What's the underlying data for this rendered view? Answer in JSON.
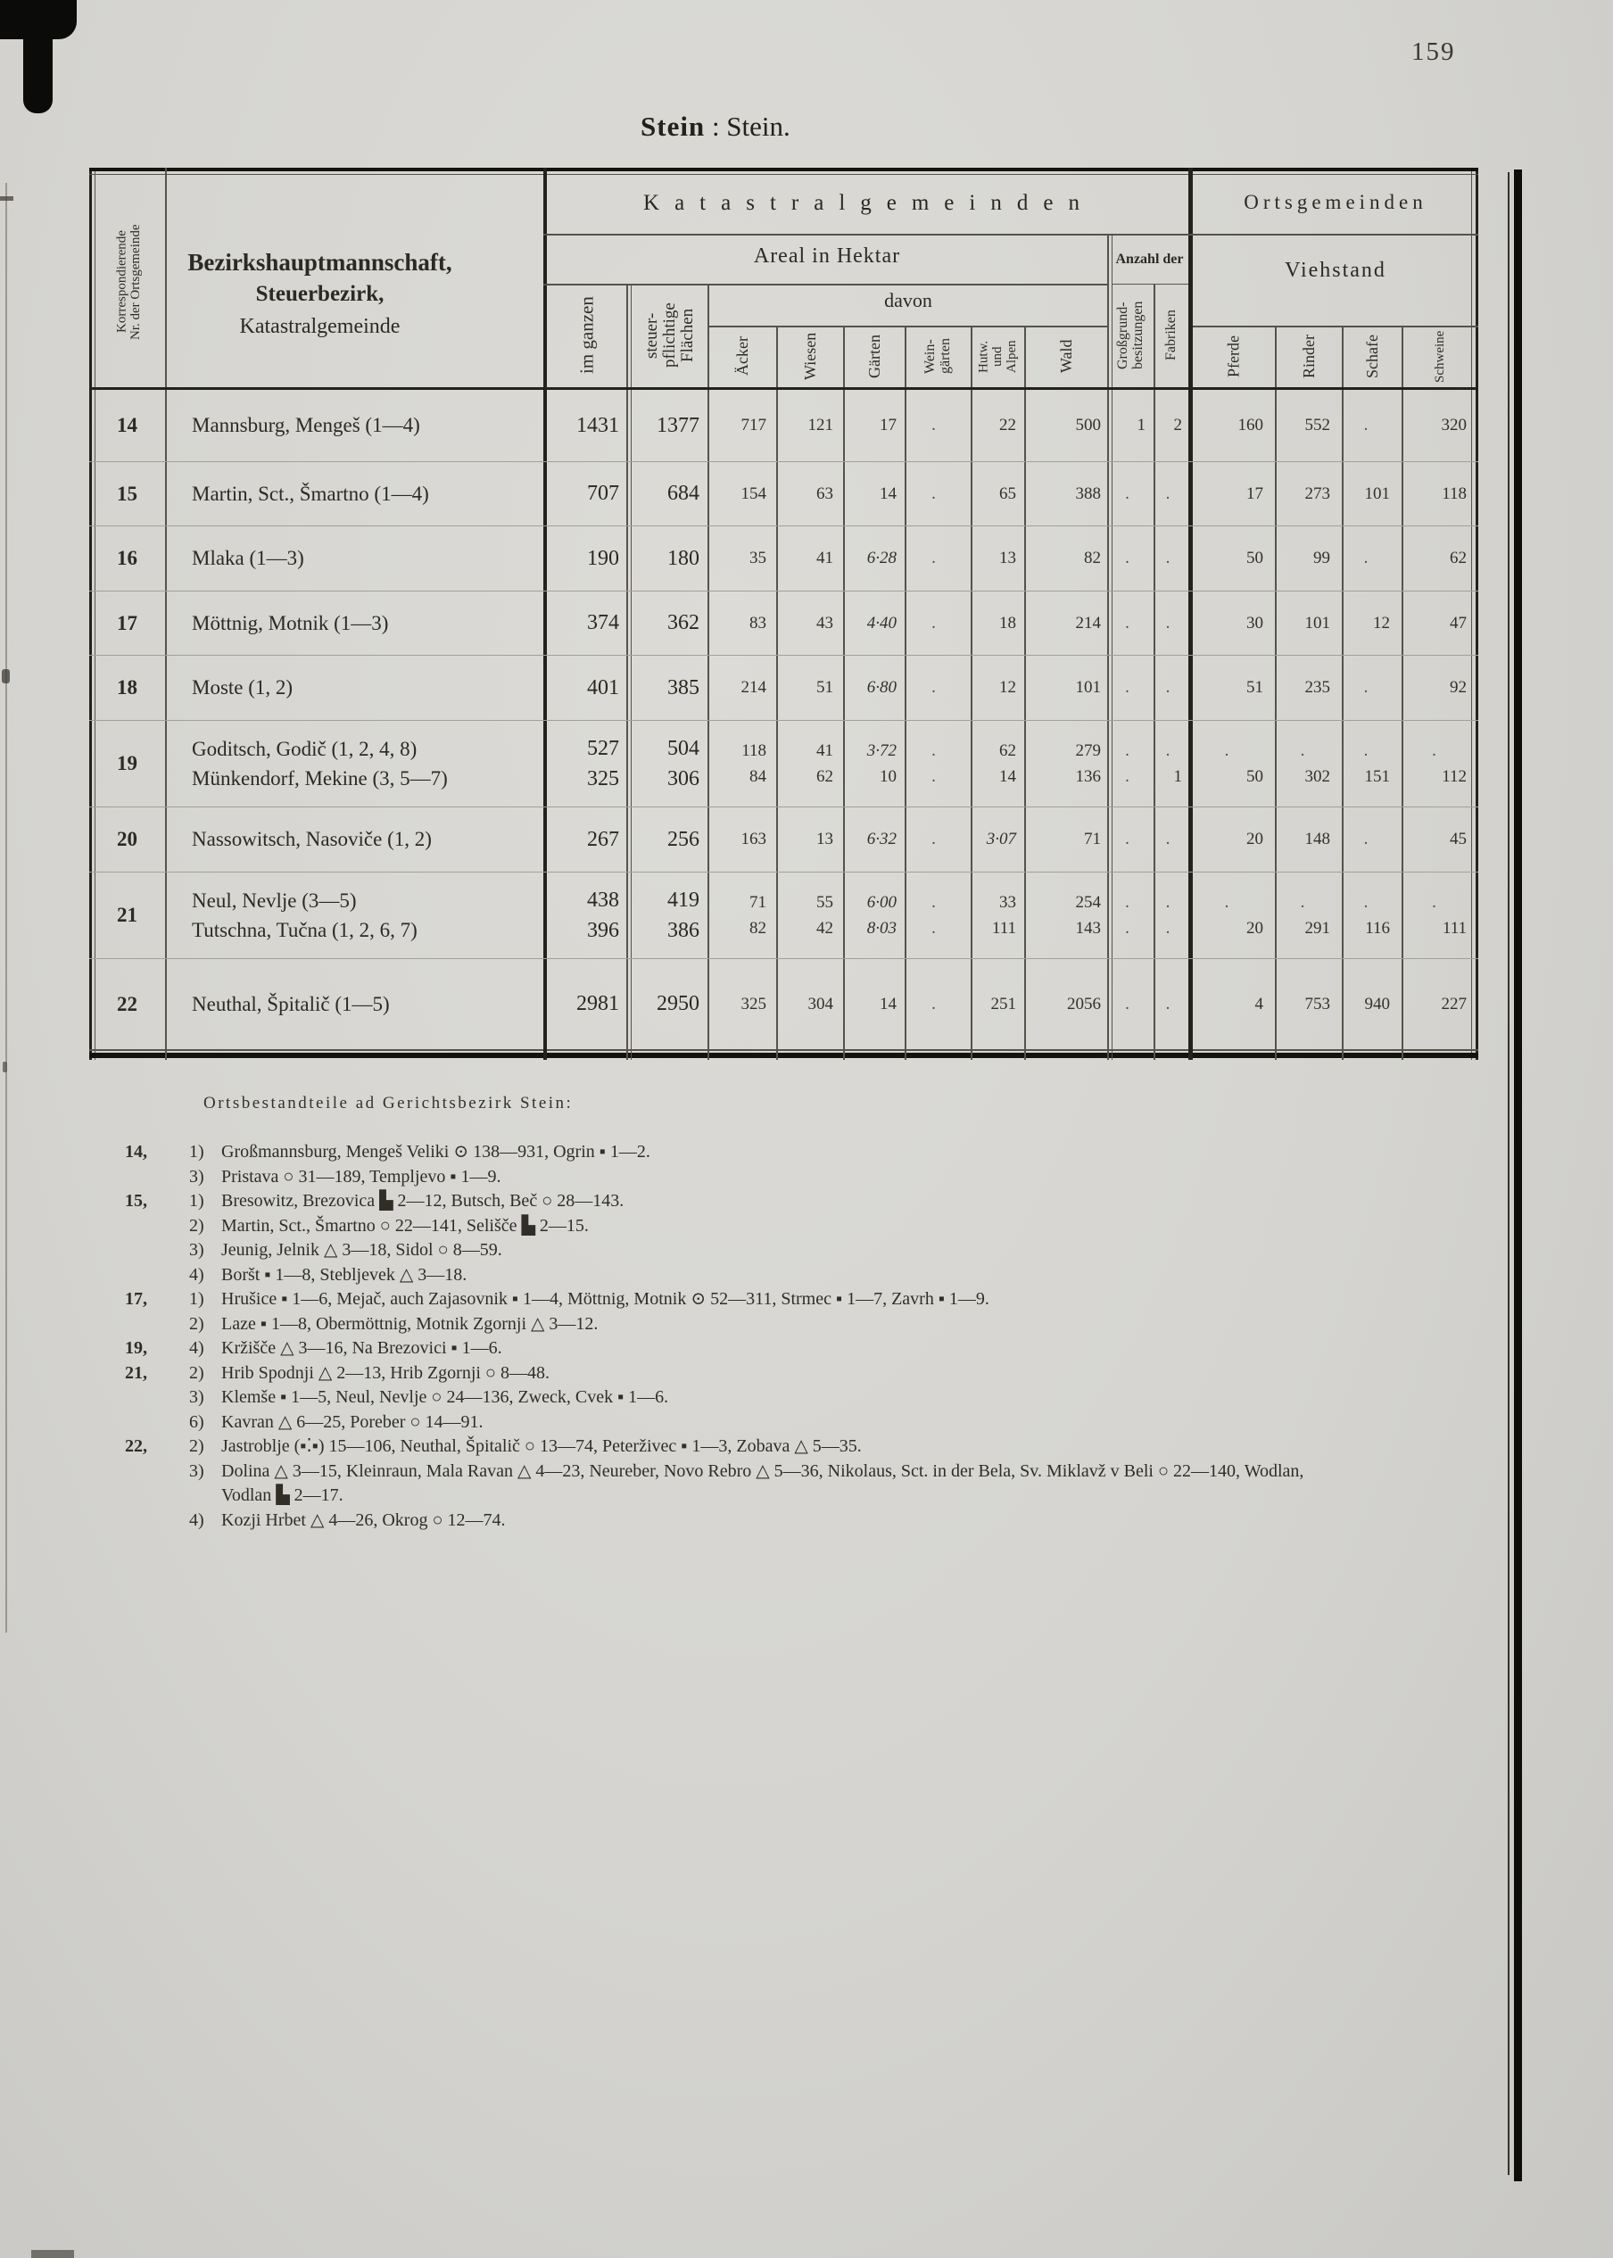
{
  "page": {
    "number": "159",
    "title": {
      "bold": "Stein",
      "rest": " : Stein."
    }
  },
  "table": {
    "corr_label": "Korrespondierende\nNr. der Ortsgemeinde",
    "left_header": [
      "Bezirkshauptmannschaft,",
      "Steuerbezirk,",
      "Katastralgemeinde"
    ],
    "sections": {
      "katastral": "Katastralgemeinden",
      "orts": "Ortsgemeinden"
    },
    "areal": "Areal in Hektar",
    "davon": "davon",
    "anzahl_der": "Anzahl der",
    "viehstand": "Viehstand",
    "columns": {
      "im_ganzen": "im ganzen",
      "steuerpflichtig": "steuer-\npflichtige\nFlächen",
      "aecker": "Äcker",
      "wiesen": "Wiesen",
      "gaerten": "Gärten",
      "weingaerten": "Wein-\ngärten",
      "hutweiden": "Hutw.\nund\nAlpen",
      "wald": "Wald",
      "grossgrund": "Großgrund-\nbesitzungen",
      "fabriken": "Fabriken",
      "pferde": "Pferde",
      "rinder": "Rinder",
      "schafe": "Schafe",
      "schweine": "Schweine"
    },
    "rows": [
      {
        "nr": "14",
        "lines": [
          {
            "name": "Mannsburg, Mengeš (1—4)",
            "values": [
              "1431",
              "1377",
              "717",
              "121",
              "17",
              ".",
              "22",
              "500",
              "1",
              "2",
              "160",
              "552",
              ".",
              "320"
            ]
          }
        ]
      },
      {
        "nr": "15",
        "lines": [
          {
            "name": "Martin, Sct., Šmartno (1—4)",
            "values": [
              "707",
              "684",
              "154",
              "63",
              "14",
              ".",
              "65",
              "388",
              ".",
              ".",
              "17",
              "273",
              "101",
              "118"
            ]
          }
        ]
      },
      {
        "nr": "16",
        "lines": [
          {
            "name": "Mlaka (1—3)",
            "values": [
              "190",
              "180",
              "35",
              "41",
              "6·28",
              ".",
              "13",
              "82",
              ".",
              ".",
              "50",
              "99",
              ".",
              "62"
            ]
          }
        ]
      },
      {
        "nr": "17",
        "lines": [
          {
            "name": "Möttnig, Motnik (1—3)",
            "values": [
              "374",
              "362",
              "83",
              "43",
              "4·40",
              ".",
              "18",
              "214",
              ".",
              ".",
              "30",
              "101",
              "12",
              "47"
            ]
          }
        ]
      },
      {
        "nr": "18",
        "lines": [
          {
            "name": "Moste (1, 2)",
            "values": [
              "401",
              "385",
              "214",
              "51",
              "6·80",
              ".",
              "12",
              "101",
              ".",
              ".",
              "51",
              "235",
              ".",
              "92"
            ]
          }
        ]
      },
      {
        "nr": "19",
        "lines": [
          {
            "name": "Goditsch, Godič (1, 2, 4, 8)",
            "values": [
              "527",
              "504",
              "118",
              "41",
              "3·72",
              ".",
              "62",
              "279",
              ".",
              ".",
              ".",
              ".",
              ".",
              "."
            ]
          },
          {
            "name": "Münkendorf, Mekine (3, 5—7)",
            "values": [
              "325",
              "306",
              "84",
              "62",
              "10",
              ".",
              "14",
              "136",
              ".",
              "1",
              "50",
              "302",
              "151",
              "112"
            ]
          }
        ]
      },
      {
        "nr": "20",
        "lines": [
          {
            "name": "Nassowitsch, Nasoviče (1, 2)",
            "values": [
              "267",
              "256",
              "163",
              "13",
              "6·32",
              ".",
              "3·07",
              "71",
              ".",
              ".",
              "20",
              "148",
              ".",
              "45"
            ]
          }
        ]
      },
      {
        "nr": "21",
        "lines": [
          {
            "name": "Neul, Nevlje (3—5)",
            "values": [
              "438",
              "419",
              "71",
              "55",
              "6·00",
              ".",
              "33",
              "254",
              ".",
              ".",
              ".",
              ".",
              ".",
              "."
            ]
          },
          {
            "name": "Tutschna, Tučna (1, 2, 6, 7)",
            "values": [
              "396",
              "386",
              "82",
              "42",
              "8·03",
              ".",
              "111",
              "143",
              ".",
              ".",
              "20",
              "291",
              "116",
              "111"
            ]
          }
        ]
      },
      {
        "nr": "22",
        "lines": [
          {
            "name": "Neuthal, Špitalič (1—5)",
            "values": [
              "2981",
              "2950",
              "325",
              "304",
              "14",
              ".",
              "251",
              "2056",
              ".",
              ".",
              "4",
              "753",
              "940",
              "227"
            ]
          }
        ]
      }
    ]
  },
  "footnotes": {
    "heading": "Ortsbestandteile ad Gerichtsbezirk Stein:",
    "items": [
      {
        "nr": "14,",
        "sub": "1)",
        "text": "Großmannsburg, Mengeš Veliki ⊙ 138—931, Ogrin ▪ 1—2."
      },
      {
        "nr": "",
        "sub": "3)",
        "text": "Pristava ○ 31—189, Templjevo ▪ 1—9."
      },
      {
        "nr": "15,",
        "sub": "1)",
        "text": "Bresowitz, Brezovica ▙ 2—12, Butsch, Beč ○ 28—143."
      },
      {
        "nr": "",
        "sub": "2)",
        "text": "Martin, Sct., Šmartno ○ 22—141, Selišče ▙ 2—15."
      },
      {
        "nr": "",
        "sub": "3)",
        "text": "Jeunig, Jelnik △ 3—18, Sidol ○ 8—59."
      },
      {
        "nr": "",
        "sub": "4)",
        "text": "Boršt ▪ 1—8, Stebljevek △ 3—18."
      },
      {
        "nr": "17,",
        "sub": "1)",
        "text": "Hrušice ▪ 1—6, Mejač, auch Zajasovnik ▪ 1—4, Möttnig, Motnik ⊙ 52—311, Strmec ▪ 1—7, Zavrh ▪ 1—9."
      },
      {
        "nr": "",
        "sub": "2)",
        "text": "Laze ▪ 1—8, Obermöttnig, Motnik Zgornji △ 3—12."
      },
      {
        "nr": "19,",
        "sub": "4)",
        "text": "Kržišče △ 3—16, Na Brezovici ▪ 1—6."
      },
      {
        "nr": "21,",
        "sub": "2)",
        "text": "Hrib Spodnji △ 2—13, Hrib Zgornji ○ 8—48."
      },
      {
        "nr": "",
        "sub": "3)",
        "text": "Klemše ▪ 1—5, Neul, Nevlje ○ 24—136, Zweck, Cvek ▪ 1—6."
      },
      {
        "nr": "",
        "sub": "6)",
        "text": "Kavran △ 6—25, Poreber ○ 14—91."
      },
      {
        "nr": "22,",
        "sub": "2)",
        "text": "Jastroblje (▪⁚▪) 15—106, Neuthal, Špitalič ○ 13—74, Peterživec ▪ 1—3, Zobava △ 5—35."
      },
      {
        "nr": "",
        "sub": "3)",
        "text": "Dolina △ 3—15, Kleinraun, Mala Ravan △ 4—23, Neureber, Novo Rebro △ 5—36, Nikolaus, Sct. in der Bela, Sv. Miklavž v Beli ○ 22—140, Wodlan,\nVodlan ▙ 2—17."
      },
      {
        "nr": "",
        "sub": "4)",
        "text": "Kozji Hrbet △ 4—26, Okrog ○ 12—74."
      }
    ]
  }
}
